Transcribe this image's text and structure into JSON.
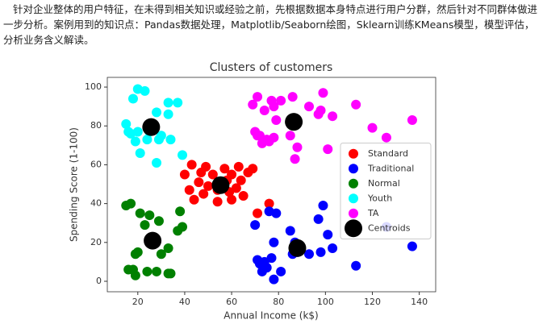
{
  "paragraph": "针对企业整体的用户特征，在未得到相关知识或经验之前，先根据数据本身特点进行用户分群，然后针对不同群体做进一步分析。案例用到的知识点：Pandas数据处理，Matplotlib/Seaborn绘图，Sklearn训练KMeans模型，模型评估，分析业务含义解读。",
  "chart_data": {
    "type": "scatter",
    "title": "Clusters of customers",
    "x_label": "Annual Income (k$)",
    "y_label": "Spending Score (1-100)",
    "xlim": [
      7,
      147
    ],
    "ylim": [
      -5.4,
      105
    ],
    "xticks": [
      20,
      40,
      60,
      80,
      100,
      120,
      140
    ],
    "yticks": [
      0,
      20,
      40,
      60,
      80,
      100
    ],
    "legend": "center right",
    "series": [
      {
        "name": "Standard",
        "color": "#ff0000",
        "size": 6,
        "x": [
          40,
          42,
          43,
          44,
          46,
          47,
          48,
          49,
          50,
          52,
          54,
          54,
          57,
          58,
          59,
          60,
          60,
          62,
          63,
          64,
          65,
          67,
          69,
          71,
          76
        ],
        "y": [
          55,
          47,
          60,
          42,
          51,
          56,
          45,
          59,
          49,
          55,
          41,
          47,
          58,
          52,
          46,
          55,
          42,
          48,
          59,
          52,
          44,
          56,
          58,
          35,
          40
        ]
      },
      {
        "name": "Traditional",
        "color": "#0000ff",
        "size": 6,
        "x": [
          70,
          71,
          72,
          73,
          74,
          75,
          76,
          77,
          78,
          78,
          79,
          81,
          85,
          86,
          87,
          88,
          93,
          97,
          98,
          99,
          101,
          103,
          113,
          126,
          137
        ],
        "y": [
          29,
          11,
          9,
          5,
          10,
          7,
          36,
          12,
          1,
          20,
          35,
          5,
          26,
          14,
          20,
          15,
          14,
          32,
          15,
          39,
          24,
          17,
          8,
          28,
          18
        ]
      },
      {
        "name": "Normal",
        "color": "#008000",
        "size": 6,
        "x": [
          15,
          16,
          17,
          18,
          19,
          19,
          20,
          21,
          23,
          24,
          25,
          28,
          29,
          30,
          33,
          33,
          34,
          37,
          38,
          39
        ],
        "y": [
          39,
          6,
          40,
          6,
          3,
          14,
          15,
          35,
          29,
          5,
          34,
          5,
          31,
          14,
          17,
          4,
          4,
          26,
          36,
          28
        ]
      },
      {
        "name": "Youth",
        "color": "#00ffff",
        "size": 6,
        "x": [
          15,
          16,
          17,
          18,
          19,
          20,
          20,
          21,
          23,
          24,
          25,
          28,
          28,
          29,
          30,
          33,
          33,
          34,
          37,
          39
        ],
        "y": [
          81,
          77,
          76,
          94,
          72,
          99,
          77,
          66,
          98,
          73,
          77,
          87,
          61,
          73,
          75,
          92,
          86,
          73,
          92,
          65
        ]
      },
      {
        "name": "TA",
        "color": "#ff00ff",
        "size": 6,
        "x": [
          69,
          70,
          71,
          71,
          72,
          73,
          74,
          75,
          76,
          77,
          78,
          78,
          79,
          81,
          85,
          86,
          87,
          88,
          93,
          97,
          98,
          99,
          101,
          103,
          113,
          120,
          126,
          137
        ],
        "y": [
          91,
          77,
          95,
          75,
          75,
          71,
          88,
          73,
          72,
          93,
          74,
          90,
          83,
          93,
          75,
          95,
          63,
          69,
          90,
          86,
          88,
          97,
          68,
          85,
          91,
          79,
          74,
          83
        ]
      },
      {
        "name": "Centroids",
        "color": "#000000",
        "size": 11,
        "x": [
          55.3,
          86.5,
          26.3,
          25.7,
          88
        ],
        "y": [
          49.5,
          82.1,
          20.9,
          79.4,
          17.1
        ]
      }
    ]
  }
}
